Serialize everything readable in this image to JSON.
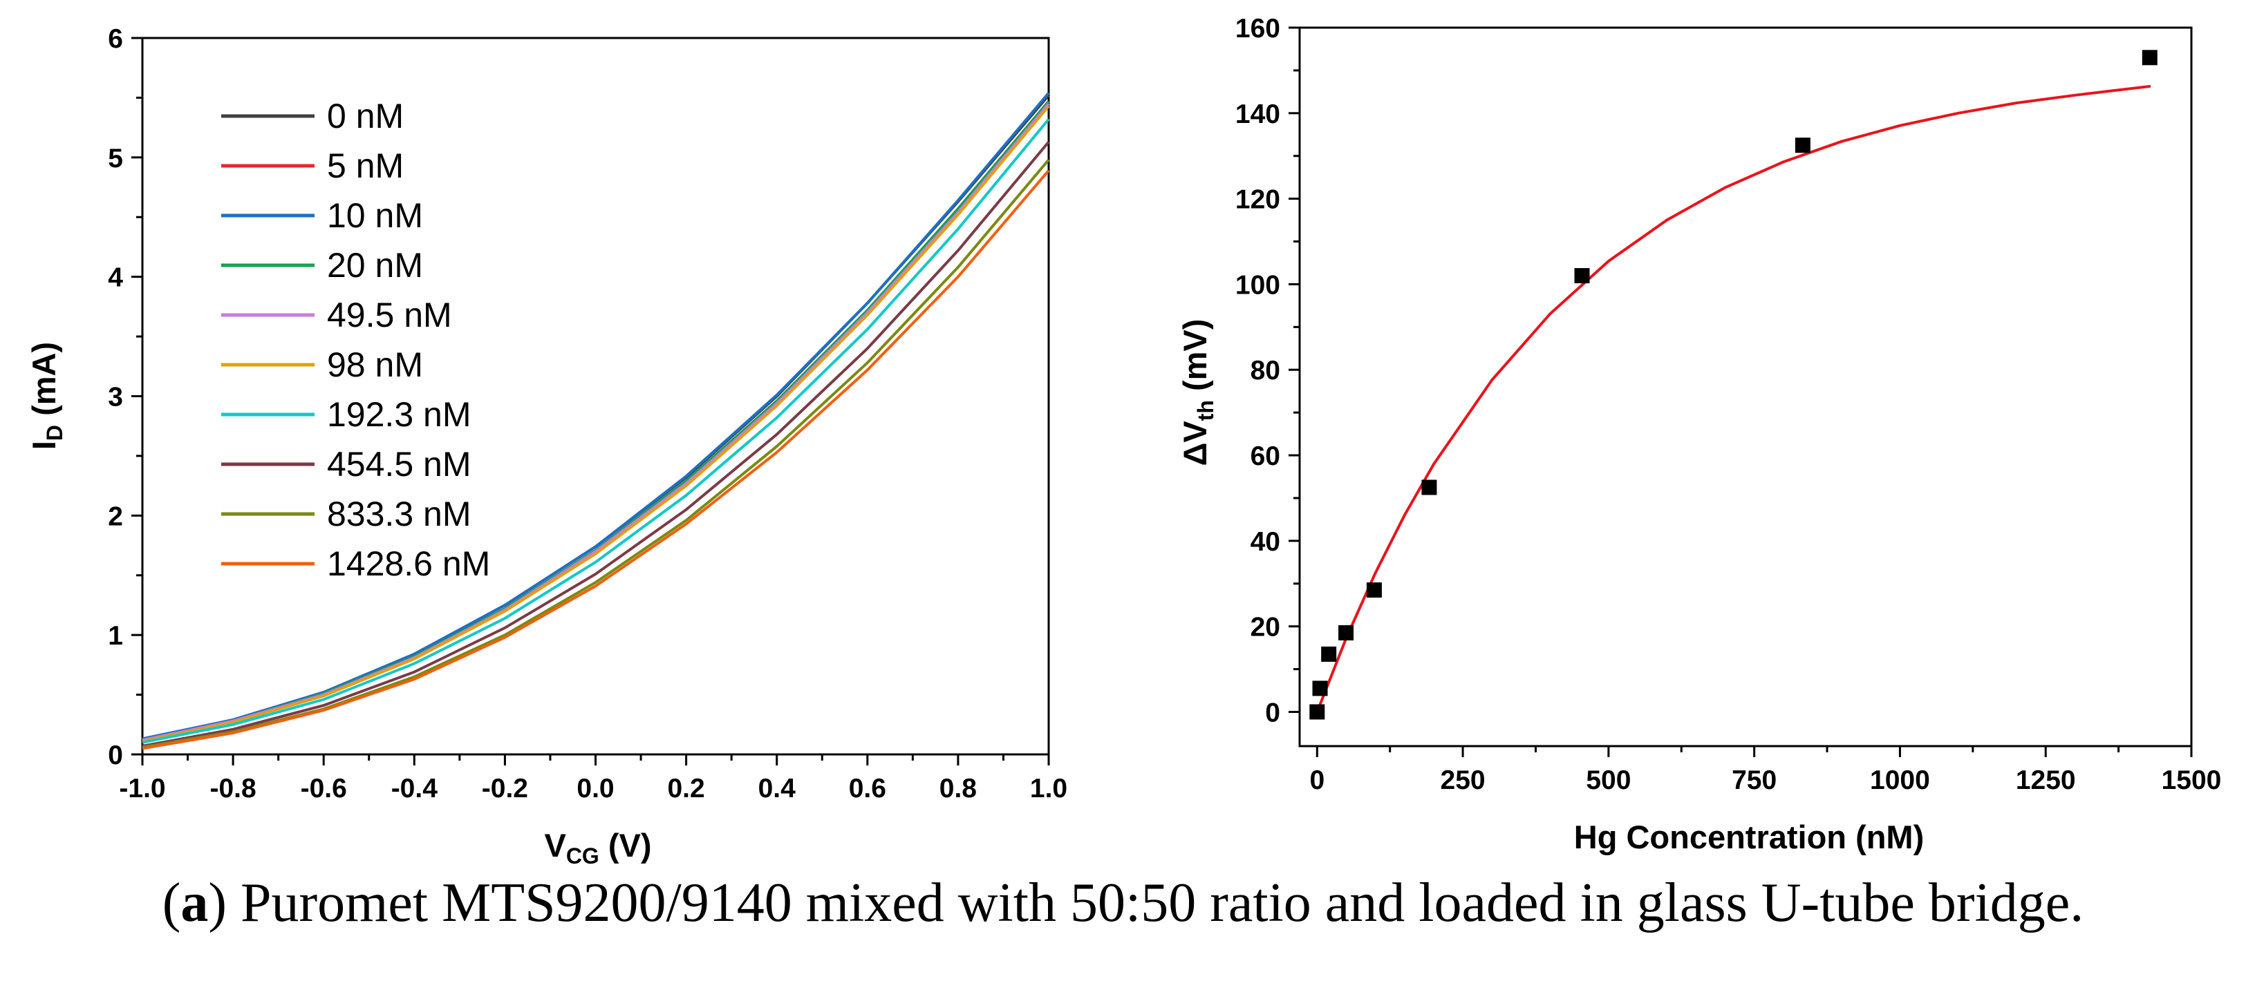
{
  "chart_data": [
    {
      "type": "line",
      "xlabel_main": "V",
      "xlabel_sub": "CG",
      "xlabel_unit": " (V)",
      "ylabel_main": "I",
      "ylabel_sub": "D",
      "ylabel_unit": " (mA)",
      "xlim": [
        -1.0,
        1.0
      ],
      "ylim": [
        0,
        6
      ],
      "x_ticks": [
        "-1.0",
        "-0.8",
        "-0.6",
        "-0.4",
        "-0.2",
        "0.0",
        "0.2",
        "0.4",
        "0.6",
        "0.8",
        "1.0"
      ],
      "x_tick_values": [
        -1.0,
        -0.8,
        -0.6,
        -0.4,
        -0.2,
        0.0,
        0.2,
        0.4,
        0.6,
        0.8,
        1.0
      ],
      "y_ticks": [
        "0",
        "1",
        "2",
        "3",
        "4",
        "5",
        "6"
      ],
      "y_tick_values": [
        0,
        1,
        2,
        3,
        4,
        5,
        6
      ],
      "x": [
        -1.0,
        -0.8,
        -0.6,
        -0.4,
        -0.2,
        0.0,
        0.2,
        0.4,
        0.6,
        0.8,
        1.0
      ],
      "legend_position": "top-left",
      "series": [
        {
          "name": "0 nM",
          "color": "#404040",
          "values": [
            0.13,
            0.29,
            0.52,
            0.84,
            1.25,
            1.74,
            2.32,
            3.0,
            3.78,
            4.63,
            5.52
          ]
        },
        {
          "name": "5 nM",
          "color": "#e8282c",
          "values": [
            0.12,
            0.28,
            0.51,
            0.82,
            1.22,
            1.71,
            2.28,
            2.95,
            3.71,
            4.56,
            5.47
          ]
        },
        {
          "name": "10 nM",
          "color": "#1f6fc5",
          "values": [
            0.13,
            0.29,
            0.52,
            0.84,
            1.25,
            1.74,
            2.33,
            3.01,
            3.78,
            4.64,
            5.54
          ]
        },
        {
          "name": "20 nM",
          "color": "#1a9e50",
          "values": [
            0.12,
            0.28,
            0.51,
            0.82,
            1.22,
            1.71,
            2.29,
            2.96,
            3.72,
            4.57,
            5.47
          ]
        },
        {
          "name": "49.5 nM",
          "color": "#c77be0",
          "values": [
            0.12,
            0.28,
            0.5,
            0.81,
            1.21,
            1.7,
            2.27,
            2.94,
            3.7,
            4.54,
            5.45
          ]
        },
        {
          "name": "98 nM",
          "color": "#e0a010",
          "values": [
            0.11,
            0.27,
            0.49,
            0.8,
            1.2,
            1.68,
            2.25,
            2.92,
            3.68,
            4.52,
            5.43
          ]
        },
        {
          "name": "192.3 nM",
          "color": "#14c8c8",
          "values": [
            0.1,
            0.25,
            0.46,
            0.76,
            1.14,
            1.61,
            2.17,
            2.82,
            3.56,
            4.4,
            5.32
          ]
        },
        {
          "name": "454.5 nM",
          "color": "#7a3b46",
          "values": [
            0.07,
            0.21,
            0.41,
            0.69,
            1.06,
            1.51,
            2.05,
            2.68,
            3.4,
            4.22,
            5.13
          ]
        },
        {
          "name": "833.3 nM",
          "color": "#7a8a10",
          "values": [
            0.06,
            0.19,
            0.38,
            0.65,
            1.0,
            1.44,
            1.96,
            2.58,
            3.28,
            4.08,
            4.98
          ]
        },
        {
          "name": "1428.6 nM",
          "color": "#f06010",
          "values": [
            0.05,
            0.18,
            0.37,
            0.63,
            0.98,
            1.41,
            1.93,
            2.53,
            3.22,
            4.0,
            4.89
          ]
        }
      ]
    },
    {
      "type": "scatter",
      "xlabel": "Hg Concentration (nM)",
      "ylabel_main": "ΔV",
      "ylabel_sub": "th",
      "ylabel_unit": " (mV)",
      "xlim": [
        -30,
        1500
      ],
      "ylim": [
        -8,
        160
      ],
      "x_ticks": [
        "0",
        "250",
        "500",
        "750",
        "1000",
        "1250",
        "1500"
      ],
      "x_tick_values": [
        0,
        250,
        500,
        750,
        1000,
        1250,
        1500
      ],
      "y_ticks": [
        "0",
        "20",
        "40",
        "60",
        "80",
        "100",
        "120",
        "140",
        "160"
      ],
      "y_tick_values": [
        0,
        20,
        40,
        60,
        80,
        100,
        120,
        140,
        160
      ],
      "points": {
        "x": [
          0,
          5,
          20,
          49.5,
          98,
          192.3,
          454.5,
          833.3,
          1428.6
        ],
        "y": [
          0,
          5.5,
          13.5,
          18.5,
          28.5,
          52.5,
          102,
          132.5,
          153
        ]
      },
      "fit": {
        "color": "#e8141c",
        "x": [
          0,
          50,
          100,
          150,
          200,
          300,
          400,
          500,
          600,
          700,
          800,
          900,
          1000,
          1100,
          1200,
          1300,
          1430
        ],
        "y": [
          0,
          17.3,
          32.5,
          46.0,
          57.9,
          77.6,
          93.1,
          105.4,
          115.0,
          122.6,
          128.6,
          133.4,
          137.1,
          140.0,
          142.4,
          144.2,
          146.3
        ]
      }
    }
  ],
  "caption": {
    "tag": "a",
    "open": "(",
    "close": ")",
    "text": " Puromet MTS9200/9140 mixed with 50:50 ratio and loaded in glass U-tube bridge."
  }
}
